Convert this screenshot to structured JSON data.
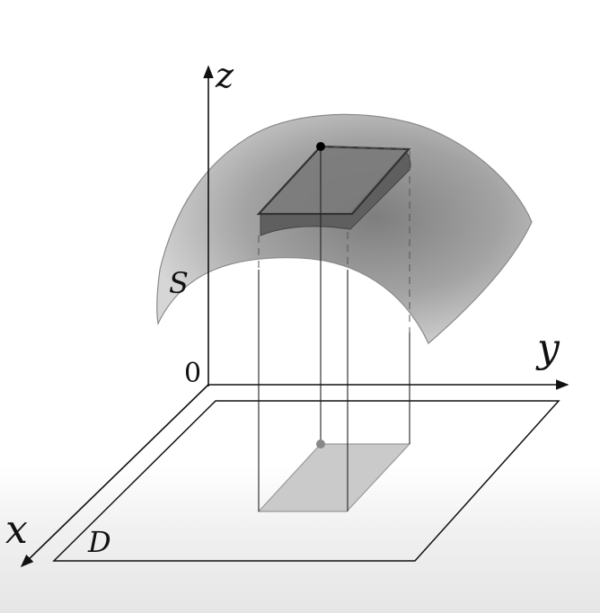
{
  "labels": {
    "z_axis": "z",
    "y_axis": "y",
    "x_axis": "x",
    "origin": "0",
    "surface": "S",
    "region": "D"
  },
  "colors": {
    "line": "#111111",
    "surface_light": "#dcdcdc",
    "surface_dark": "#8f8f8f",
    "patch": "#6e6e6e",
    "projection": "#c8c8c8"
  }
}
